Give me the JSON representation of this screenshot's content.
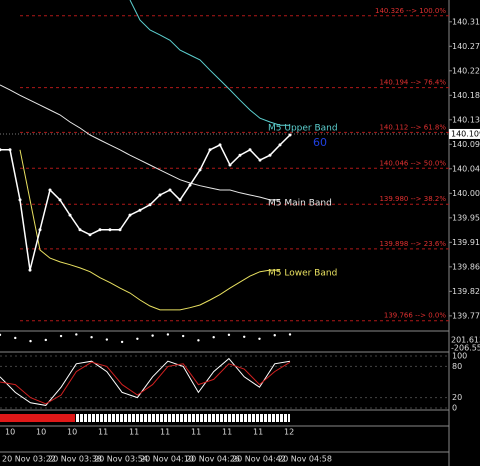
{
  "chart_data": {
    "type": "line",
    "ylim": [
      139.749,
      140.355
    ],
    "yticks": [
      140.315,
      {
        "value": 140.27,
        "label": "140.270"
      },
      140.225,
      {
        "value": 140.18,
        "label": "140.180"
      },
      140.135,
      {
        "value": 140.09,
        "label": "140.090"
      },
      140.045,
      {
        "value": 140,
        "label": "140.000"
      },
      139.955,
      {
        "value": 139.91,
        "label": "139.910"
      },
      139.865,
      {
        "value": 139.82,
        "label": "139.820"
      },
      139.775
    ],
    "x_labels": [
      "20 Nov 03:22",
      "20 Nov 03:38",
      "20 Nov 03:54",
      "20 Nov 04:10",
      "20 Nov 04:26",
      "20 Nov 04:42",
      "20 Nov 04:58"
    ],
    "hour_labels": [
      "10",
      "10",
      "10",
      "11",
      "11",
      "11",
      "11",
      "11",
      "11",
      "12"
    ],
    "series": [
      {
        "name": "M5 Upper Band",
        "color": "#5ccfcf",
        "values": [
          null,
          null,
          null,
          null,
          null,
          null,
          null,
          null,
          null,
          null,
          null,
          null,
          null,
          140.355,
          140.318,
          140.3,
          140.291,
          140.281,
          140.263,
          140.254,
          140.245,
          140.226,
          140.208,
          140.19,
          140.171,
          140.153,
          140.138,
          140.131,
          140.125,
          140.125
        ]
      },
      {
        "name": "M5 Main Band",
        "color": "#e8e8e8",
        "values": [
          140.199,
          140.19,
          140.18,
          140.171,
          140.162,
          140.153,
          140.144,
          140.131,
          140.12,
          140.107,
          140.098,
          140.089,
          140.08,
          140.07,
          140.061,
          140.052,
          140.043,
          140.034,
          140.025,
          140.019,
          140.014,
          140.01,
          140.006,
          140.006,
          140.001,
          139.997,
          139.993,
          139.988,
          139.988,
          null
        ]
      },
      {
        "name": "M5 Lower Band",
        "color": "#e8e060",
        "values": [
          null,
          null,
          140.08,
          139.988,
          139.896,
          139.881,
          139.874,
          139.869,
          139.863,
          139.856,
          139.845,
          139.836,
          139.826,
          139.817,
          139.804,
          139.793,
          139.786,
          139.786,
          139.786,
          139.79,
          139.795,
          139.804,
          139.814,
          139.826,
          139.837,
          139.848,
          139.856,
          139.859,
          139.859,
          null
        ]
      },
      {
        "color": "#ffffff",
        "values": [
          140.08,
          140.08,
          139.988,
          139.859,
          139.933,
          140.006,
          139.988,
          139.96,
          139.933,
          139.924,
          139.933,
          139.933,
          139.933,
          139.96,
          139.969,
          139.979,
          139.997,
          140.006,
          139.988,
          140.015,
          140.043,
          140.08,
          140.089,
          140.052,
          140.07,
          140.08,
          140.061,
          140.07,
          140.089,
          140.107
        ]
      }
    ],
    "fib_levels": [
      {
        "value": 140.326,
        "label": "140.326 --> 100.0%"
      },
      {
        "value": 140.194,
        "label": "140.194 --> 76.4%"
      },
      {
        "value": 140.112,
        "label": "140.112 --> 61.8%"
      },
      {
        "value": 140.046,
        "label": "140.046 --> 50.0%"
      },
      {
        "value": 139.98,
        "label": "139.980 --> 38.2%"
      },
      {
        "value": 139.898,
        "label": "139.898 --> 23.6%"
      },
      {
        "value": 139.766,
        "label": "139.766 --> 0.0%"
      }
    ],
    "last_price": 140.109,
    "annotation": "60",
    "cci": {
      "ylim": [
        -206.5517,
        201.6134
      ],
      "yticks": [
        201.6134,
        -206.5517
      ],
      "color": "#ffffff",
      "values": [
        180,
        100,
        20,
        50,
        150,
        190,
        120,
        60,
        0,
        80,
        160,
        190,
        150,
        40,
        120,
        180,
        130,
        80,
        170,
        190
      ]
    },
    "stochastic": {
      "ylim": [
        0,
        100
      ],
      "yticks": [
        100,
        80,
        20,
        0
      ],
      "series": [
        {
          "color": "#ffffff",
          "values": [
            60,
            30,
            10,
            5,
            40,
            85,
            90,
            70,
            30,
            20,
            60,
            90,
            80,
            30,
            70,
            95,
            60,
            40,
            85,
            90
          ]
        },
        {
          "color": "#d02020",
          "values": [
            50,
            45,
            20,
            8,
            25,
            70,
            88,
            80,
            45,
            25,
            45,
            80,
            85,
            45,
            55,
            85,
            75,
            45,
            70,
            88
          ]
        }
      ]
    }
  }
}
